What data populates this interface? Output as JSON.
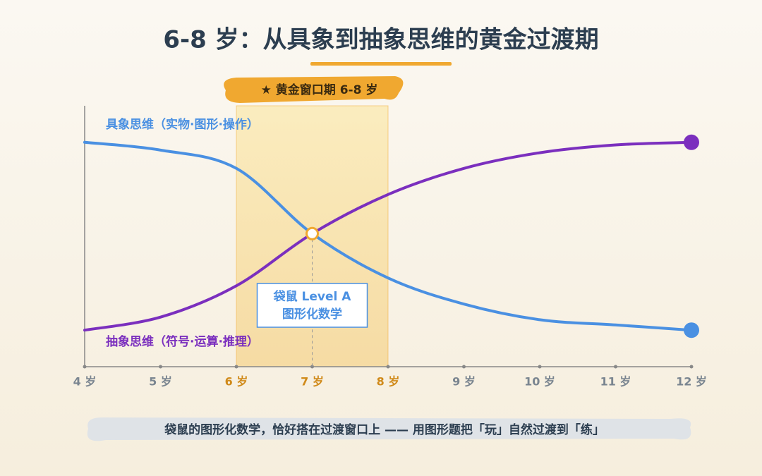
{
  "chart_data": {
    "type": "line",
    "title": "6-8 岁：从具象到抽象思维的黄金过渡期",
    "x": [
      4,
      5,
      6,
      7,
      8,
      9,
      10,
      11,
      12
    ],
    "xlim": [
      4,
      12
    ],
    "xticks": [
      {
        "value": 4,
        "label": "4 岁"
      },
      {
        "value": 5,
        "label": "5 岁"
      },
      {
        "value": 6,
        "label": "6 岁"
      },
      {
        "value": 7,
        "label": "7 岁"
      },
      {
        "value": 8,
        "label": "8 岁"
      },
      {
        "value": 9,
        "label": "9 岁"
      },
      {
        "value": 10,
        "label": "10 岁"
      },
      {
        "value": 11,
        "label": "11 岁"
      },
      {
        "value": 12,
        "label": "12 岁"
      }
    ],
    "ylim": [
      0,
      100
    ],
    "series": [
      {
        "name": "具象思维（实物·图形·操作）",
        "color": "#4a90e2",
        "values": [
          86,
          83,
          76,
          51,
          34,
          24,
          18,
          16,
          14
        ]
      },
      {
        "name": "抽象思维（符号·运算·推理）",
        "color": "#7b2fbe",
        "values": [
          14,
          19,
          31,
          51,
          66,
          76,
          82,
          85,
          86
        ]
      }
    ],
    "window": {
      "label": "★ 黄金窗口期 6-8 岁",
      "range": [
        6,
        8
      ],
      "color": "#f0a830"
    },
    "callout": {
      "x": 7,
      "lines": [
        "袋鼠 Level A",
        "图形化数学"
      ]
    },
    "footer": "袋鼠的图形化数学，恰好搭在过渡窗口上 —— 用图形题把「玩」自然过渡到「练」"
  }
}
